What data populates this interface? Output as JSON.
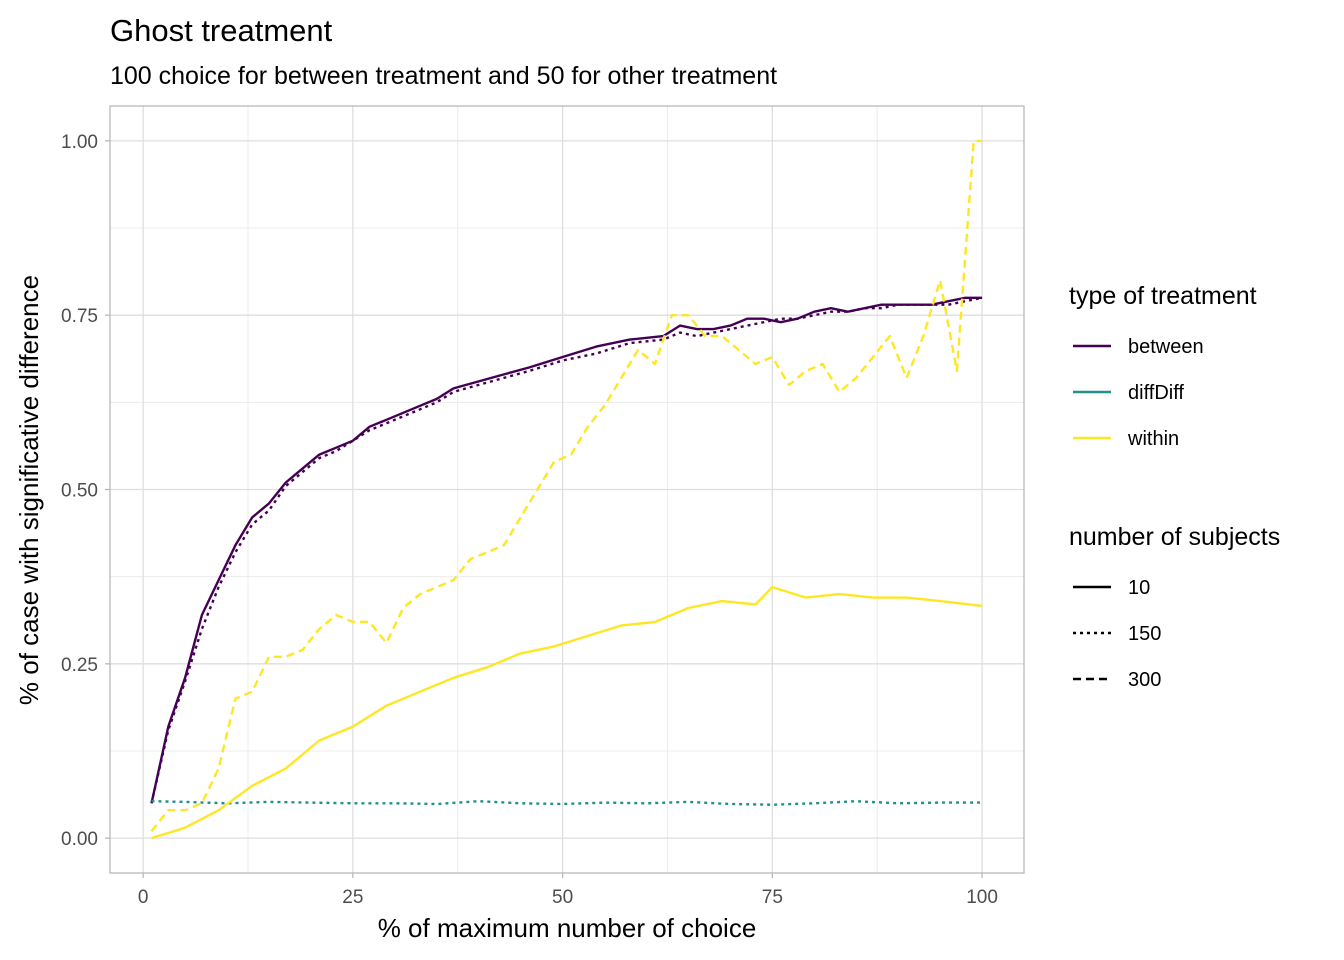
{
  "chart_data": {
    "type": "line",
    "title": "Ghost treatment",
    "subtitle": "100 choice for between treatment and 50 for other treatment",
    "xlabel": "% of maximum number of choice",
    "ylabel": "% of case with significative difference",
    "xlim": [
      -3.95,
      105
    ],
    "ylim": [
      -0.05,
      1.05
    ],
    "x_ticks": [
      0,
      25,
      50,
      75,
      100
    ],
    "x_tick_labels": [
      "0",
      "25",
      "50",
      "75",
      "100"
    ],
    "y_ticks": [
      0,
      0.25,
      0.5,
      0.75,
      1.0
    ],
    "y_tick_labels": [
      "0.00",
      "0.25",
      "0.50",
      "0.75",
      "1.00"
    ],
    "grid": true,
    "legend_placement": "right",
    "legends": {
      "color_title": "type of treatment",
      "color_items": [
        {
          "label": "between",
          "color": "#440154"
        },
        {
          "label": "diffDiff",
          "color": "#21908C"
        },
        {
          "label": "within",
          "color": "#FDE725"
        }
      ],
      "linetype_title": "number of subjects",
      "linetype_items": [
        {
          "label": "10",
          "dash": "solid"
        },
        {
          "label": "150",
          "dash": "dotted"
        },
        {
          "label": "300",
          "dash": "dashed"
        }
      ]
    },
    "series": [
      {
        "treatment": "between",
        "subjects": "10",
        "color": "#440154",
        "dash": "solid",
        "x": [
          1,
          3,
          5,
          7,
          9,
          11,
          13,
          15,
          17,
          19,
          21,
          23,
          25,
          27,
          29,
          31,
          33,
          35,
          37,
          40,
          43,
          46,
          50,
          54,
          58,
          62,
          64,
          66,
          68,
          70,
          72,
          74,
          76,
          78,
          80,
          82,
          84,
          86,
          88,
          90,
          92,
          94,
          96,
          98,
          100
        ],
        "y": [
          0.05,
          0.16,
          0.23,
          0.32,
          0.37,
          0.42,
          0.46,
          0.48,
          0.51,
          0.53,
          0.55,
          0.56,
          0.57,
          0.59,
          0.6,
          0.61,
          0.62,
          0.63,
          0.645,
          0.655,
          0.665,
          0.675,
          0.69,
          0.705,
          0.715,
          0.72,
          0.735,
          0.73,
          0.73,
          0.735,
          0.745,
          0.745,
          0.74,
          0.745,
          0.755,
          0.76,
          0.755,
          0.76,
          0.765,
          0.765,
          0.765,
          0.765,
          0.77,
          0.775,
          0.775
        ]
      },
      {
        "treatment": "between",
        "subjects": "150",
        "color": "#440154",
        "dash": "dotted",
        "x": [
          1,
          3,
          5,
          7,
          9,
          11,
          13,
          15,
          17,
          19,
          21,
          23,
          25,
          27,
          29,
          31,
          33,
          35,
          37,
          40,
          43,
          46,
          50,
          54,
          58,
          62,
          64,
          66,
          68,
          70,
          72,
          74,
          76,
          78,
          80,
          82,
          84,
          86,
          88,
          90,
          92,
          94,
          96,
          98,
          100
        ],
        "y": [
          0.05,
          0.155,
          0.225,
          0.3,
          0.36,
          0.41,
          0.45,
          0.47,
          0.505,
          0.525,
          0.545,
          0.555,
          0.57,
          0.585,
          0.595,
          0.605,
          0.615,
          0.625,
          0.64,
          0.65,
          0.66,
          0.67,
          0.685,
          0.695,
          0.71,
          0.715,
          0.725,
          0.72,
          0.725,
          0.73,
          0.735,
          0.74,
          0.745,
          0.745,
          0.75,
          0.755,
          0.755,
          0.76,
          0.76,
          0.765,
          0.765,
          0.765,
          0.765,
          0.77,
          0.775
        ]
      },
      {
        "treatment": "diffDiff",
        "subjects": "150",
        "color": "#21908C",
        "dash": "dotted",
        "x": [
          1,
          5,
          10,
          15,
          20,
          25,
          30,
          35,
          40,
          45,
          50,
          55,
          60,
          65,
          70,
          75,
          80,
          85,
          90,
          95,
          100
        ],
        "y": [
          0.053,
          0.052,
          0.05,
          0.052,
          0.051,
          0.05,
          0.05,
          0.049,
          0.053,
          0.05,
          0.049,
          0.051,
          0.05,
          0.052,
          0.049,
          0.048,
          0.05,
          0.053,
          0.05,
          0.051,
          0.051
        ]
      },
      {
        "treatment": "within",
        "subjects": "10",
        "color": "#FDE725",
        "dash": "solid",
        "x": [
          1,
          5,
          9,
          13,
          17,
          21,
          25,
          29,
          33,
          37,
          41,
          45,
          49,
          53,
          57,
          61,
          65,
          69,
          73,
          75,
          79,
          83,
          87,
          91,
          95,
          100
        ],
        "y": [
          0.0,
          0.015,
          0.04,
          0.075,
          0.1,
          0.14,
          0.16,
          0.19,
          0.21,
          0.23,
          0.245,
          0.265,
          0.275,
          0.29,
          0.305,
          0.31,
          0.33,
          0.34,
          0.335,
          0.36,
          0.345,
          0.35,
          0.345,
          0.345,
          0.34,
          0.333
        ]
      },
      {
        "treatment": "within",
        "subjects": "300",
        "color": "#FDE725",
        "dash": "dashed",
        "x": [
          1,
          3,
          5,
          7,
          9,
          11,
          13,
          15,
          17,
          19,
          21,
          23,
          25,
          27,
          29,
          31,
          33,
          35,
          37,
          39,
          41,
          43,
          45,
          47,
          49,
          51,
          53,
          55,
          57,
          59,
          61,
          63,
          65,
          67,
          69,
          71,
          73,
          75,
          77,
          79,
          81,
          83,
          85,
          87,
          89,
          91,
          93,
          95,
          97,
          99,
          100
        ],
        "y": [
          0.01,
          0.04,
          0.04,
          0.05,
          0.1,
          0.2,
          0.21,
          0.26,
          0.26,
          0.27,
          0.3,
          0.32,
          0.31,
          0.31,
          0.28,
          0.33,
          0.35,
          0.36,
          0.37,
          0.4,
          0.41,
          0.42,
          0.46,
          0.5,
          0.54,
          0.55,
          0.59,
          0.62,
          0.66,
          0.7,
          0.68,
          0.75,
          0.75,
          0.72,
          0.72,
          0.7,
          0.68,
          0.69,
          0.65,
          0.67,
          0.68,
          0.64,
          0.66,
          0.69,
          0.72,
          0.66,
          0.72,
          0.8,
          0.67,
          1.0,
          1.0
        ]
      }
    ]
  }
}
